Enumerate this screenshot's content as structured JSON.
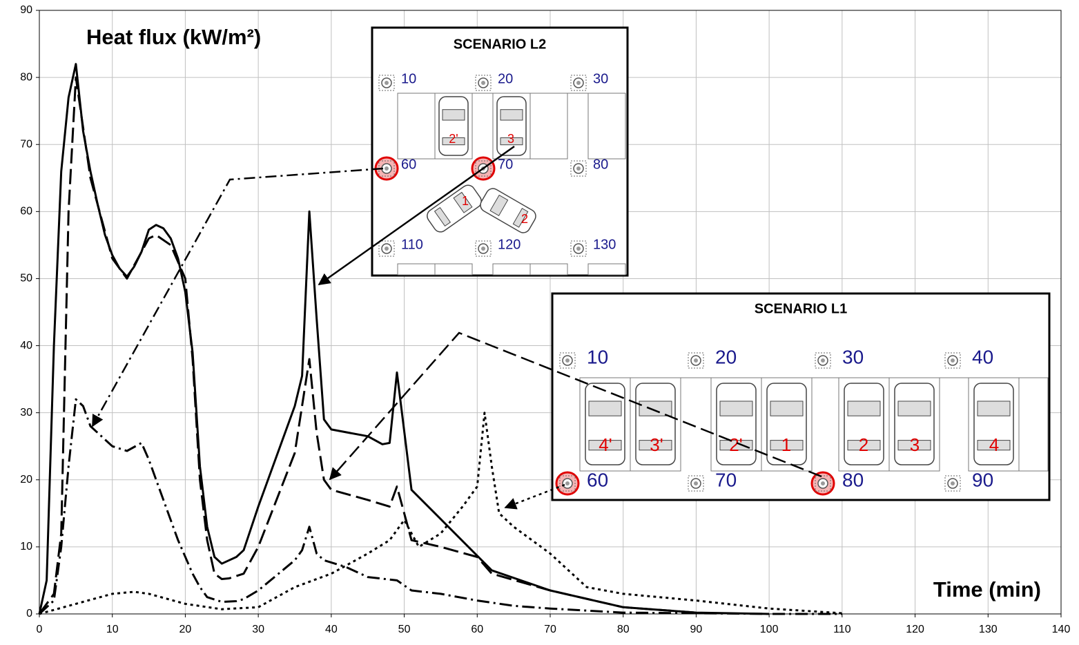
{
  "chart_data": {
    "type": "line",
    "y_label": "Heat flux (kW/m²)",
    "x_label": "Time (min)",
    "xlim": [
      0,
      140
    ],
    "xticks": [
      0,
      10,
      20,
      30,
      40,
      50,
      60,
      70,
      80,
      90,
      100,
      110,
      120,
      130,
      140
    ],
    "ylim": [
      0,
      90
    ],
    "yticks": [
      0,
      10,
      20,
      30,
      40,
      50,
      60,
      70,
      80,
      90
    ],
    "grid": true,
    "series": [
      {
        "color": "#000000",
        "dash": "solid",
        "x": [
          0,
          1,
          2,
          3,
          4,
          5,
          6,
          7,
          8,
          9,
          10,
          11,
          12,
          13,
          14,
          15,
          16,
          17,
          18,
          19,
          20,
          21,
          22,
          23,
          24,
          25,
          26,
          27,
          28,
          30,
          35,
          36,
          37,
          38,
          39,
          40,
          45,
          47,
          48,
          49,
          51,
          62,
          70,
          80,
          90,
          100
        ],
        "values": [
          0,
          5,
          40,
          66,
          77,
          82,
          72,
          66,
          61,
          56.5,
          53.5,
          51.5,
          50.3,
          51.8,
          54,
          57.3,
          58,
          57.5,
          56,
          53,
          48,
          39,
          22,
          13,
          8.5,
          7.5,
          8,
          8.5,
          9.5,
          16,
          31,
          35.5,
          60,
          44,
          29,
          27.5,
          26.5,
          25.3,
          25.5,
          36,
          18.5,
          6.5,
          3.5,
          1,
          0.2,
          0
        ]
      },
      {
        "color": "#000000",
        "dash": "long-dash",
        "x": [
          0,
          2,
          3,
          4,
          5,
          7,
          10,
          12,
          15,
          16,
          18,
          20,
          21,
          22,
          23,
          24,
          25,
          26,
          28,
          30,
          35,
          37,
          38,
          39,
          40,
          45,
          48,
          49,
          51,
          55,
          60,
          62,
          70,
          80,
          90
        ],
        "values": [
          0,
          3,
          12,
          60,
          80,
          65,
          53,
          50,
          56,
          56.5,
          55,
          50,
          38,
          20,
          11,
          6,
          5.2,
          5.3,
          6,
          10,
          24,
          38,
          27,
          20,
          18.5,
          17,
          16,
          19,
          11,
          10,
          8.5,
          6,
          3.5,
          1,
          0.2
        ]
      },
      {
        "color": "#000000",
        "dash": "dash-dot",
        "x": [
          0,
          2,
          3,
          4,
          5,
          6,
          7,
          10,
          12,
          14,
          15,
          17,
          19,
          21,
          22,
          23,
          25,
          27,
          28,
          30,
          35,
          36,
          37,
          38,
          39,
          42,
          45,
          49,
          51,
          55,
          60,
          65,
          70,
          80,
          90,
          100,
          110
        ],
        "values": [
          0,
          2,
          10,
          22,
          32,
          31,
          28,
          25,
          24.3,
          25.5,
          23,
          17,
          11,
          6,
          4,
          2.5,
          1.8,
          1.9,
          2.2,
          3.5,
          8,
          9.5,
          13,
          9,
          8,
          7,
          5.5,
          5,
          3.5,
          3,
          2,
          1.2,
          0.8,
          0.2,
          0.1,
          0,
          0
        ]
      },
      {
        "color": "#000000",
        "dash": "dotted",
        "x": [
          0,
          5,
          10,
          13,
          15,
          20,
          25,
          30,
          35,
          40,
          45,
          48,
          50,
          52,
          55,
          58,
          60,
          61,
          62,
          63,
          65,
          70,
          75,
          80,
          90,
          100,
          110
        ],
        "values": [
          0,
          1.5,
          3,
          3.3,
          3,
          1.5,
          0.7,
          1,
          4,
          6,
          9,
          11,
          14,
          10,
          12,
          16,
          19,
          30,
          22,
          15,
          13,
          9,
          4,
          3,
          2,
          0.8,
          0.1
        ]
      }
    ]
  },
  "insets": [
    {
      "title": "SCENARIO L2",
      "sensors": [
        "10",
        "20",
        "30",
        "60",
        "70",
        "80",
        "110",
        "120",
        "130"
      ],
      "sensor_active": [
        false,
        false,
        false,
        true,
        true,
        false,
        false,
        false,
        false
      ],
      "cars": [
        "2'",
        "3",
        "1",
        "2"
      ]
    },
    {
      "title": "SCENARIO L1",
      "sensors": [
        "10",
        "20",
        "30",
        "40",
        "60",
        "70",
        "80",
        "90"
      ],
      "sensor_active": [
        false,
        false,
        false,
        false,
        true,
        false,
        true,
        false
      ],
      "cars": [
        "4'",
        "3'",
        "2'",
        "1",
        "2",
        "3",
        "4"
      ]
    }
  ]
}
